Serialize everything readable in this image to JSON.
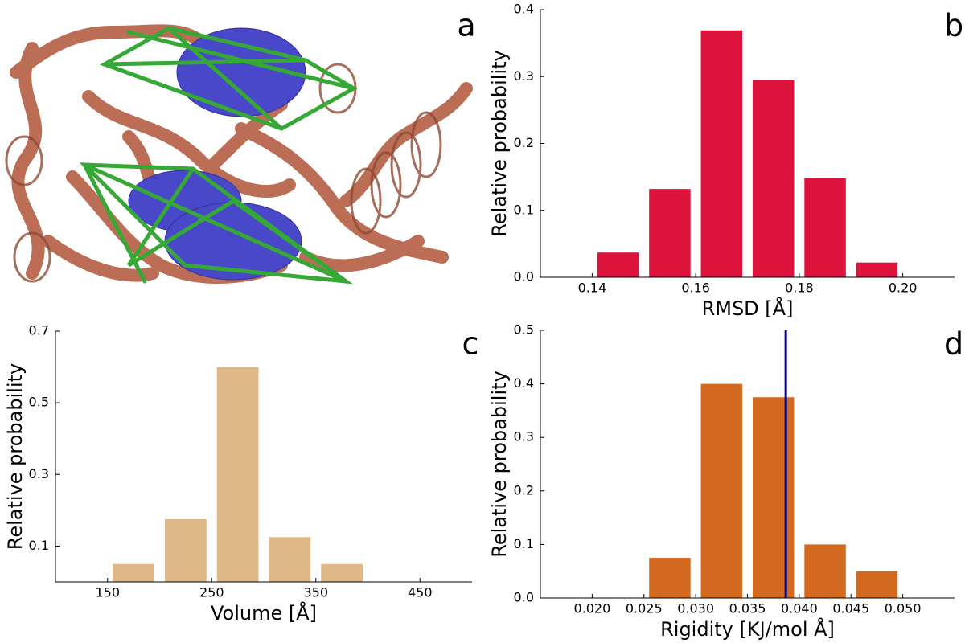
{
  "image_panel": {
    "label": "a"
  },
  "chart_data": [
    {
      "type": "histogram",
      "panel_label": "b",
      "xlabel": "RMSD [Å]",
      "ylabel": "Relative probability",
      "bins": [
        0.14,
        0.15,
        0.16,
        0.17,
        0.18,
        0.19,
        0.2
      ],
      "values": [
        0.037,
        0.132,
        0.369,
        0.295,
        0.148,
        0.022
      ],
      "color": "#dc143c",
      "xlim": [
        0.13,
        0.21
      ],
      "ylim": [
        0,
        0.4
      ],
      "xticks": [
        0.14,
        0.16,
        0.18,
        {
          "value": 0.2,
          "label": "0.20"
        }
      ],
      "yticks": [
        {
          "value": 0,
          "label": "0.0"
        },
        0.1,
        0.2,
        0.3,
        0.4
      ]
    },
    {
      "type": "histogram",
      "panel_label": "c",
      "xlabel": "Volume [Å]",
      "ylabel": "Relative probability",
      "bins": [
        150,
        200,
        250,
        300,
        350,
        400
      ],
      "values": [
        0.05,
        0.175,
        0.6,
        0.125,
        0.05
      ],
      "color": "#deb887",
      "xlim": [
        100,
        500
      ],
      "ylim": [
        0,
        0.7
      ],
      "xticks": [
        150,
        250,
        350,
        450
      ],
      "yticks": [
        0.1,
        0.3,
        0.5,
        0.7
      ]
    },
    {
      "type": "histogram",
      "panel_label": "d",
      "xlabel": "Rigidity [KJ/mol Å]",
      "ylabel": "Relative probability",
      "bins": [
        0.025,
        0.03,
        0.035,
        0.04,
        0.045,
        0.05
      ],
      "values": [
        0.075,
        0.4,
        0.375,
        0.1,
        0.05
      ],
      "color": "#d2691e",
      "vline": 0.0387,
      "vline_color": "#000080",
      "xlim": [
        0.015,
        0.055
      ],
      "ylim": [
        0,
        0.5
      ],
      "xticks": [
        {
          "value": 0.02,
          "label": "0.020"
        },
        {
          "value": 0.025,
          "label": "0.025"
        },
        {
          "value": 0.03,
          "label": "0.030"
        },
        {
          "value": 0.035,
          "label": "0.035"
        },
        {
          "value": 0.04,
          "label": "0.040"
        },
        {
          "value": 0.045,
          "label": "0.045"
        },
        {
          "value": 0.05,
          "label": "0.050"
        }
      ],
      "yticks": [
        {
          "value": 0,
          "label": "0.0"
        },
        0.1,
        0.2,
        0.3,
        0.4,
        0.5
      ]
    }
  ]
}
